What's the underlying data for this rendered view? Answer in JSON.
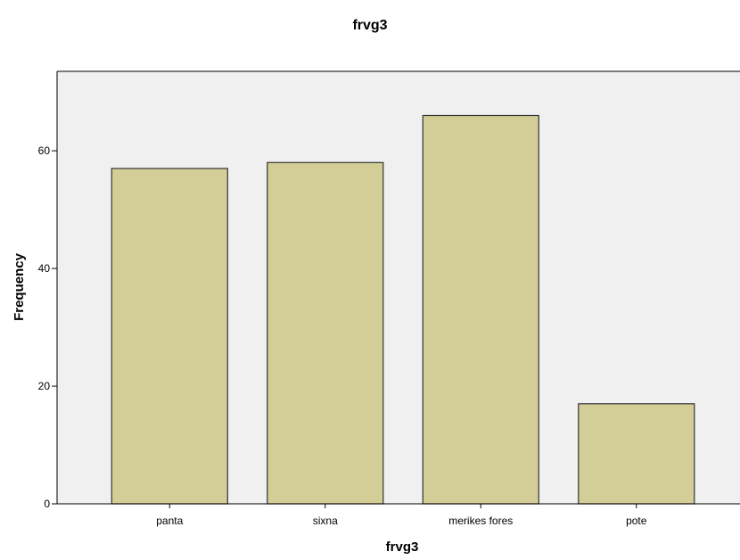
{
  "chart_data": {
    "type": "bar",
    "title": "frvg3",
    "xlabel": "frvg3",
    "ylabel": "Frequency",
    "categories": [
      "panta",
      "sixna",
      "merikes fores",
      "pote"
    ],
    "values": [
      57,
      58,
      66,
      17
    ],
    "yticks": [
      0,
      20,
      40,
      60
    ],
    "ylim": [
      0,
      73.5
    ],
    "grid": false,
    "legend": "none",
    "colors": {
      "bar_fill": "#d3ce97",
      "bar_stroke": "#333333",
      "plot_background": "#f0f0f0"
    }
  }
}
